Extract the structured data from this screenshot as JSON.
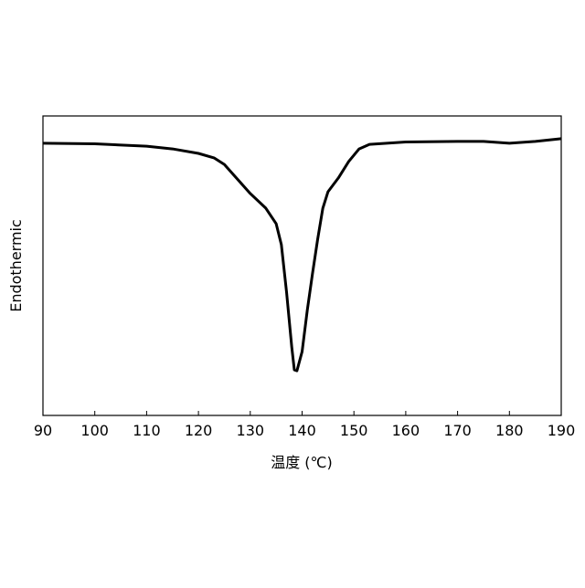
{
  "chart_data": {
    "type": "line",
    "xlabel": "温度 (℃)",
    "ylabel": "Endothermic",
    "x": [
      90,
      100,
      110,
      115,
      120,
      123,
      125,
      127,
      130,
      133,
      135,
      136,
      137,
      138,
      138.5,
      139,
      140,
      141,
      142,
      143,
      144,
      145,
      147,
      149,
      151,
      153,
      160,
      170,
      175,
      180,
      185,
      190
    ],
    "series": [
      {
        "color": "#000000",
        "values": [
          90.9,
          90.7,
          89.9,
          89.0,
          87.5,
          86.0,
          83.8,
          79.9,
          74.1,
          69.2,
          64.0,
          57.0,
          41.2,
          22.9,
          15.2,
          14.9,
          21.3,
          35.1,
          47.3,
          58.8,
          69.2,
          74.7,
          79.3,
          84.8,
          89.0,
          90.5,
          91.3,
          91.5,
          91.5,
          90.9,
          91.5,
          92.4
        ]
      }
    ],
    "xlim": [
      90,
      190
    ],
    "xticks": [
      90,
      100,
      110,
      120,
      130,
      140,
      150,
      160,
      170,
      180,
      190
    ],
    "ylim": [
      0,
      100
    ],
    "grid": false
  }
}
